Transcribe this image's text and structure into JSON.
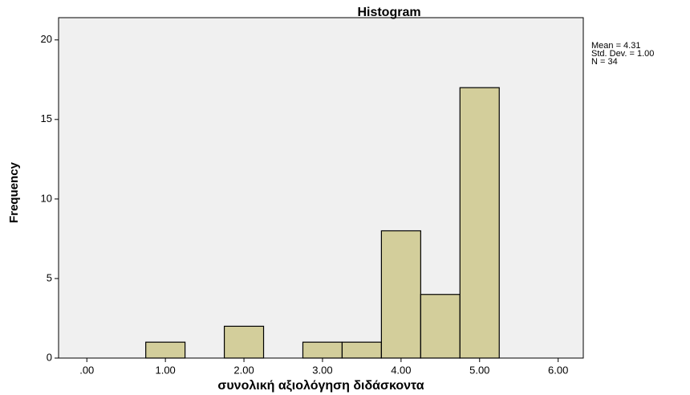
{
  "chart_data": {
    "type": "histogram",
    "title": "Histogram",
    "x_label": "συνολική αξιολόγηση διδάσκοντα",
    "y_label": "Frequency",
    "bins": [
      0.75,
      1.25,
      1.75,
      2.25,
      2.75,
      3.25,
      3.75,
      4.25,
      4.75,
      5.25
    ],
    "counts": [
      1,
      0,
      2,
      0,
      1,
      1,
      8,
      4,
      17
    ],
    "color": "#d3ce9b",
    "xlim": [
      -0.36,
      6.32
    ],
    "xticks": [
      {
        "value": 0,
        "label": ".00"
      },
      {
        "value": 1,
        "label": "1.00"
      },
      {
        "value": 2,
        "label": "2.00"
      },
      {
        "value": 3,
        "label": "3.00"
      },
      {
        "value": 4,
        "label": "4.00"
      },
      {
        "value": 5,
        "label": "5.00"
      },
      {
        "value": 6,
        "label": "6.00"
      }
    ],
    "ylim": [
      0,
      21.4
    ],
    "yticks": [
      0,
      5,
      10,
      15,
      20
    ],
    "stats": [
      "Mean = 4.31",
      "Std. Dev. = 1.00",
      "N = 34"
    ]
  }
}
